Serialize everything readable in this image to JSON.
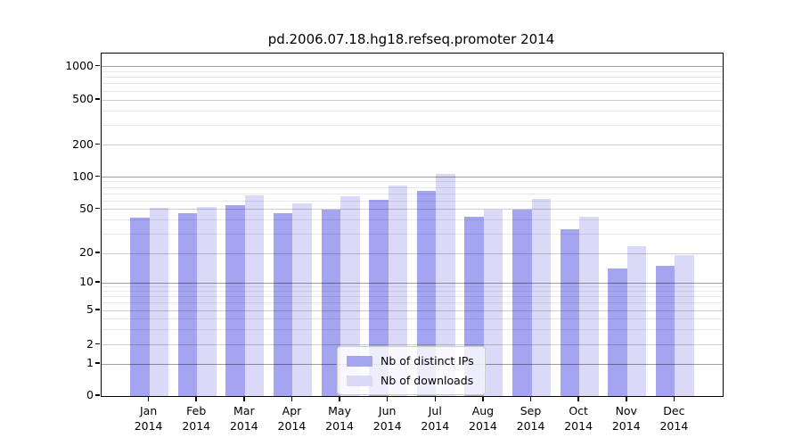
{
  "title": "pd.2006.07.18.hg18.refseq.promoter 2014",
  "chart_data": {
    "type": "bar",
    "title": "pd.2006.07.18.hg18.refseq.promoter 2014",
    "categories": [
      "Jan",
      "Feb",
      "Mar",
      "Apr",
      "May",
      "Jun",
      "Jul",
      "Aug",
      "Sep",
      "Oct",
      "Nov",
      "Dec"
    ],
    "category_year": "2014",
    "series": [
      {
        "name": "Nb of distinct IPs",
        "color": "#a4a4f0",
        "values": [
          42,
          46,
          55,
          46,
          50,
          61,
          74,
          43,
          50,
          33,
          14,
          15
        ]
      },
      {
        "name": "Nb of downloads",
        "color": "#dadaf8",
        "values": [
          51,
          52,
          67,
          57,
          66,
          84,
          107,
          50,
          62,
          43,
          23,
          19
        ]
      }
    ],
    "y_axis": {
      "scale": "symlog",
      "tick_labels": [
        1000,
        500,
        200,
        100,
        50,
        20,
        10,
        5,
        2,
        1,
        0
      ],
      "ylim": [
        0,
        1300
      ]
    },
    "grid": true,
    "legend_position": "bottom-center"
  },
  "legend": {
    "items": [
      {
        "label": "Nb of distinct IPs",
        "color": "#a4a4f0"
      },
      {
        "label": "Nb of downloads",
        "color": "#dadaf8"
      }
    ]
  }
}
